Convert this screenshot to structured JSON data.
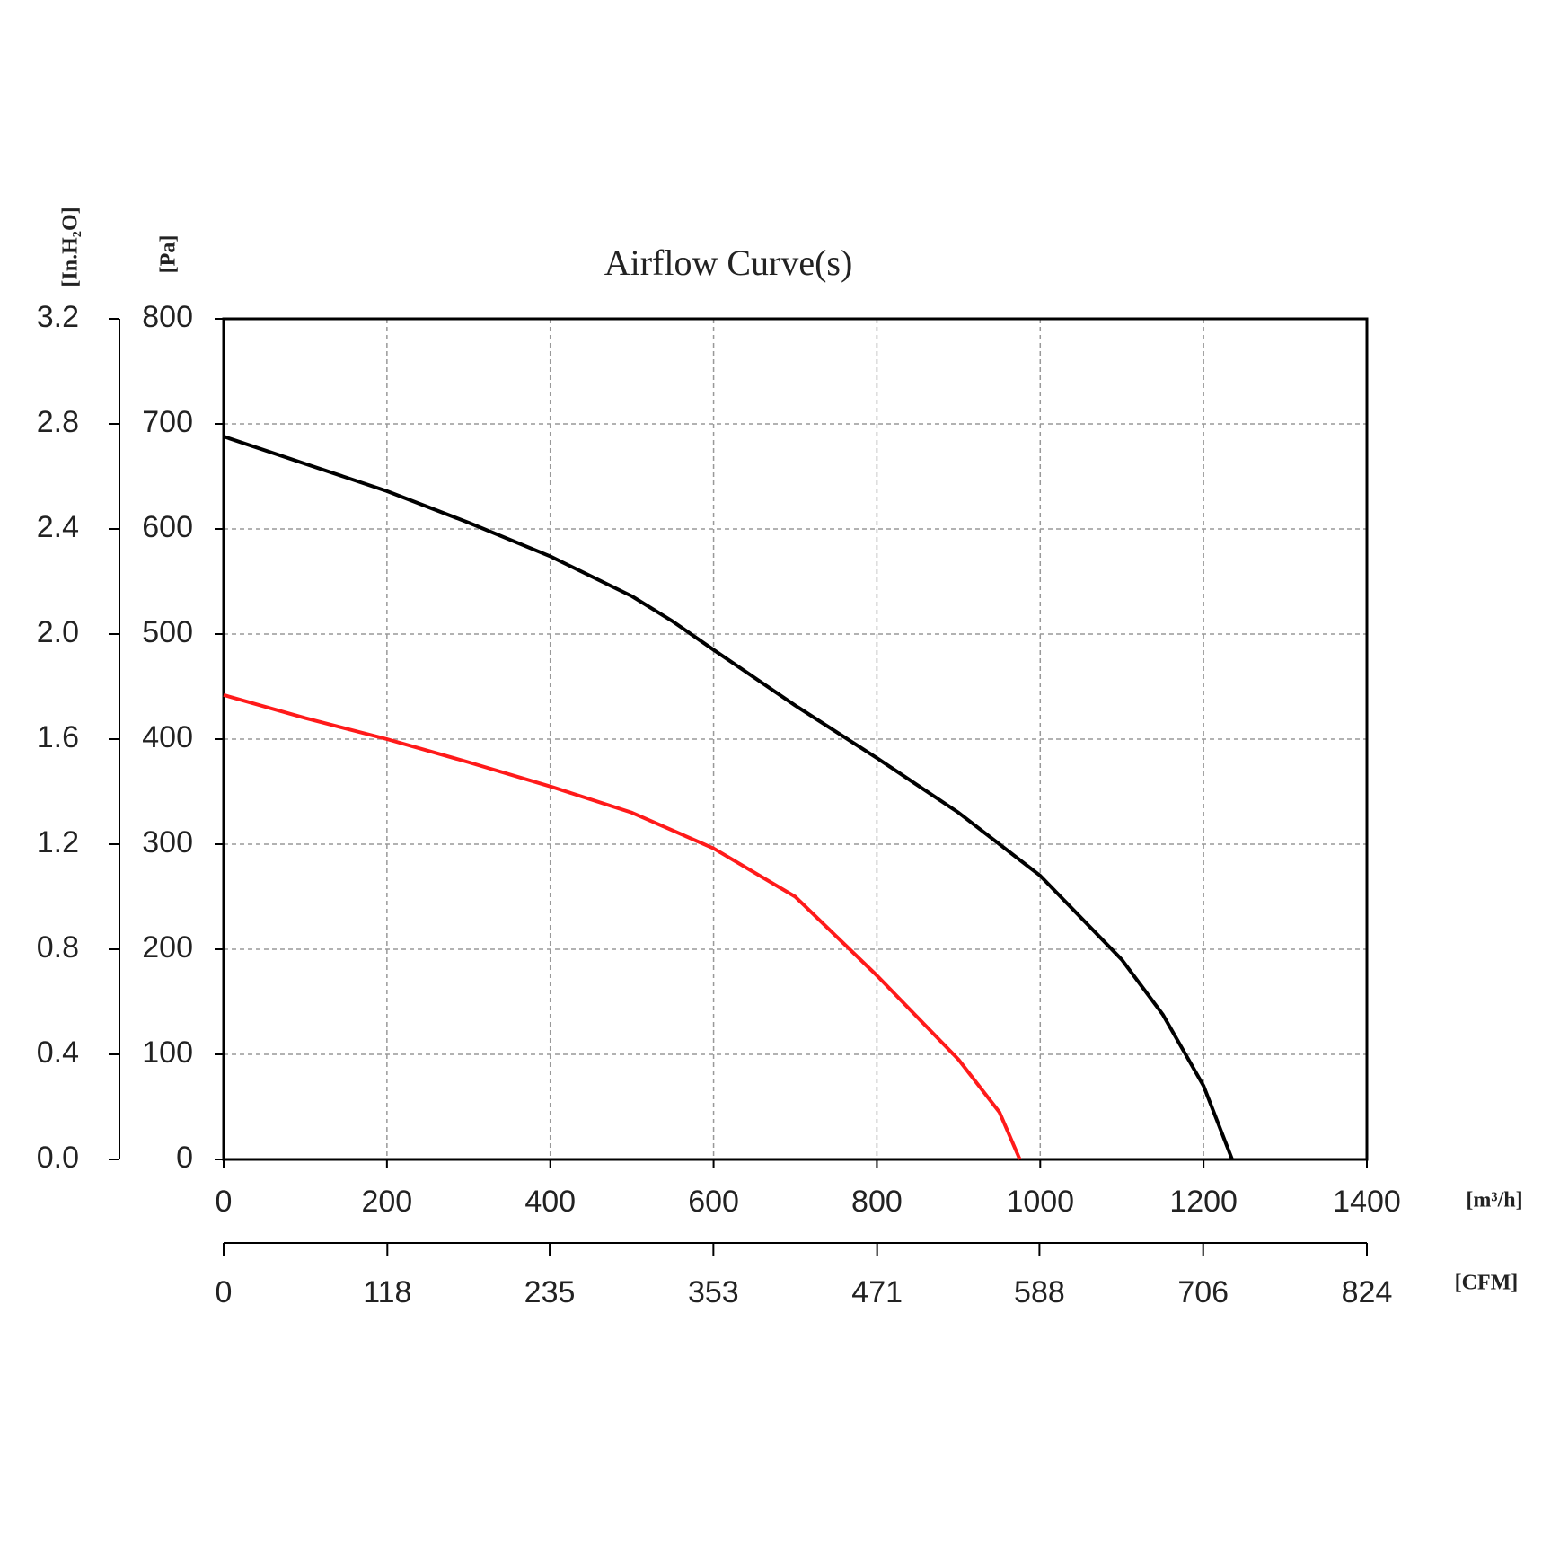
{
  "chart_data": {
    "type": "line",
    "title": "Airflow Curve(s)",
    "x_label": "[m³/h]",
    "x2_label": "[CFM]",
    "y_label": "[Pa]",
    "y2_label": "[In.H₂O]",
    "xlim": [
      0,
      1400
    ],
    "xticks": [
      0,
      200,
      400,
      600,
      800,
      1000,
      1200,
      1400
    ],
    "x2lim": [
      0,
      824
    ],
    "x2ticks": [
      0,
      118,
      235,
      353,
      471,
      588,
      706,
      824
    ],
    "ylim": [
      0,
      800
    ],
    "yticks": [
      0,
      100,
      200,
      300,
      400,
      500,
      600,
      700,
      800
    ],
    "y2lim": [
      0,
      3.2
    ],
    "y2ticks": [
      {
        "value": 0,
        "label": "0.0"
      },
      0.4,
      0.8,
      1.2,
      1.6,
      {
        "value": 2,
        "label": "2.0"
      },
      2.4,
      2.8,
      3.2
    ],
    "grid": true,
    "series": [
      {
        "color": "#000000",
        "x": [
          0,
          100,
          200,
          300,
          400,
          500,
          550,
          600,
          700,
          800,
          900,
          1000,
          1100,
          1150,
          1200,
          1235
        ],
        "values": [
          688,
          662,
          636,
          606,
          574,
          536,
          512,
          485,
          432,
          382,
          330,
          270,
          190,
          138,
          70,
          0
        ]
      },
      {
        "color": "#ff1a1a",
        "x": [
          0,
          100,
          200,
          300,
          400,
          500,
          600,
          700,
          800,
          900,
          950,
          975
        ],
        "values": [
          442,
          420,
          400,
          378,
          355,
          330,
          296,
          250,
          175,
          95,
          45,
          0
        ]
      }
    ]
  }
}
